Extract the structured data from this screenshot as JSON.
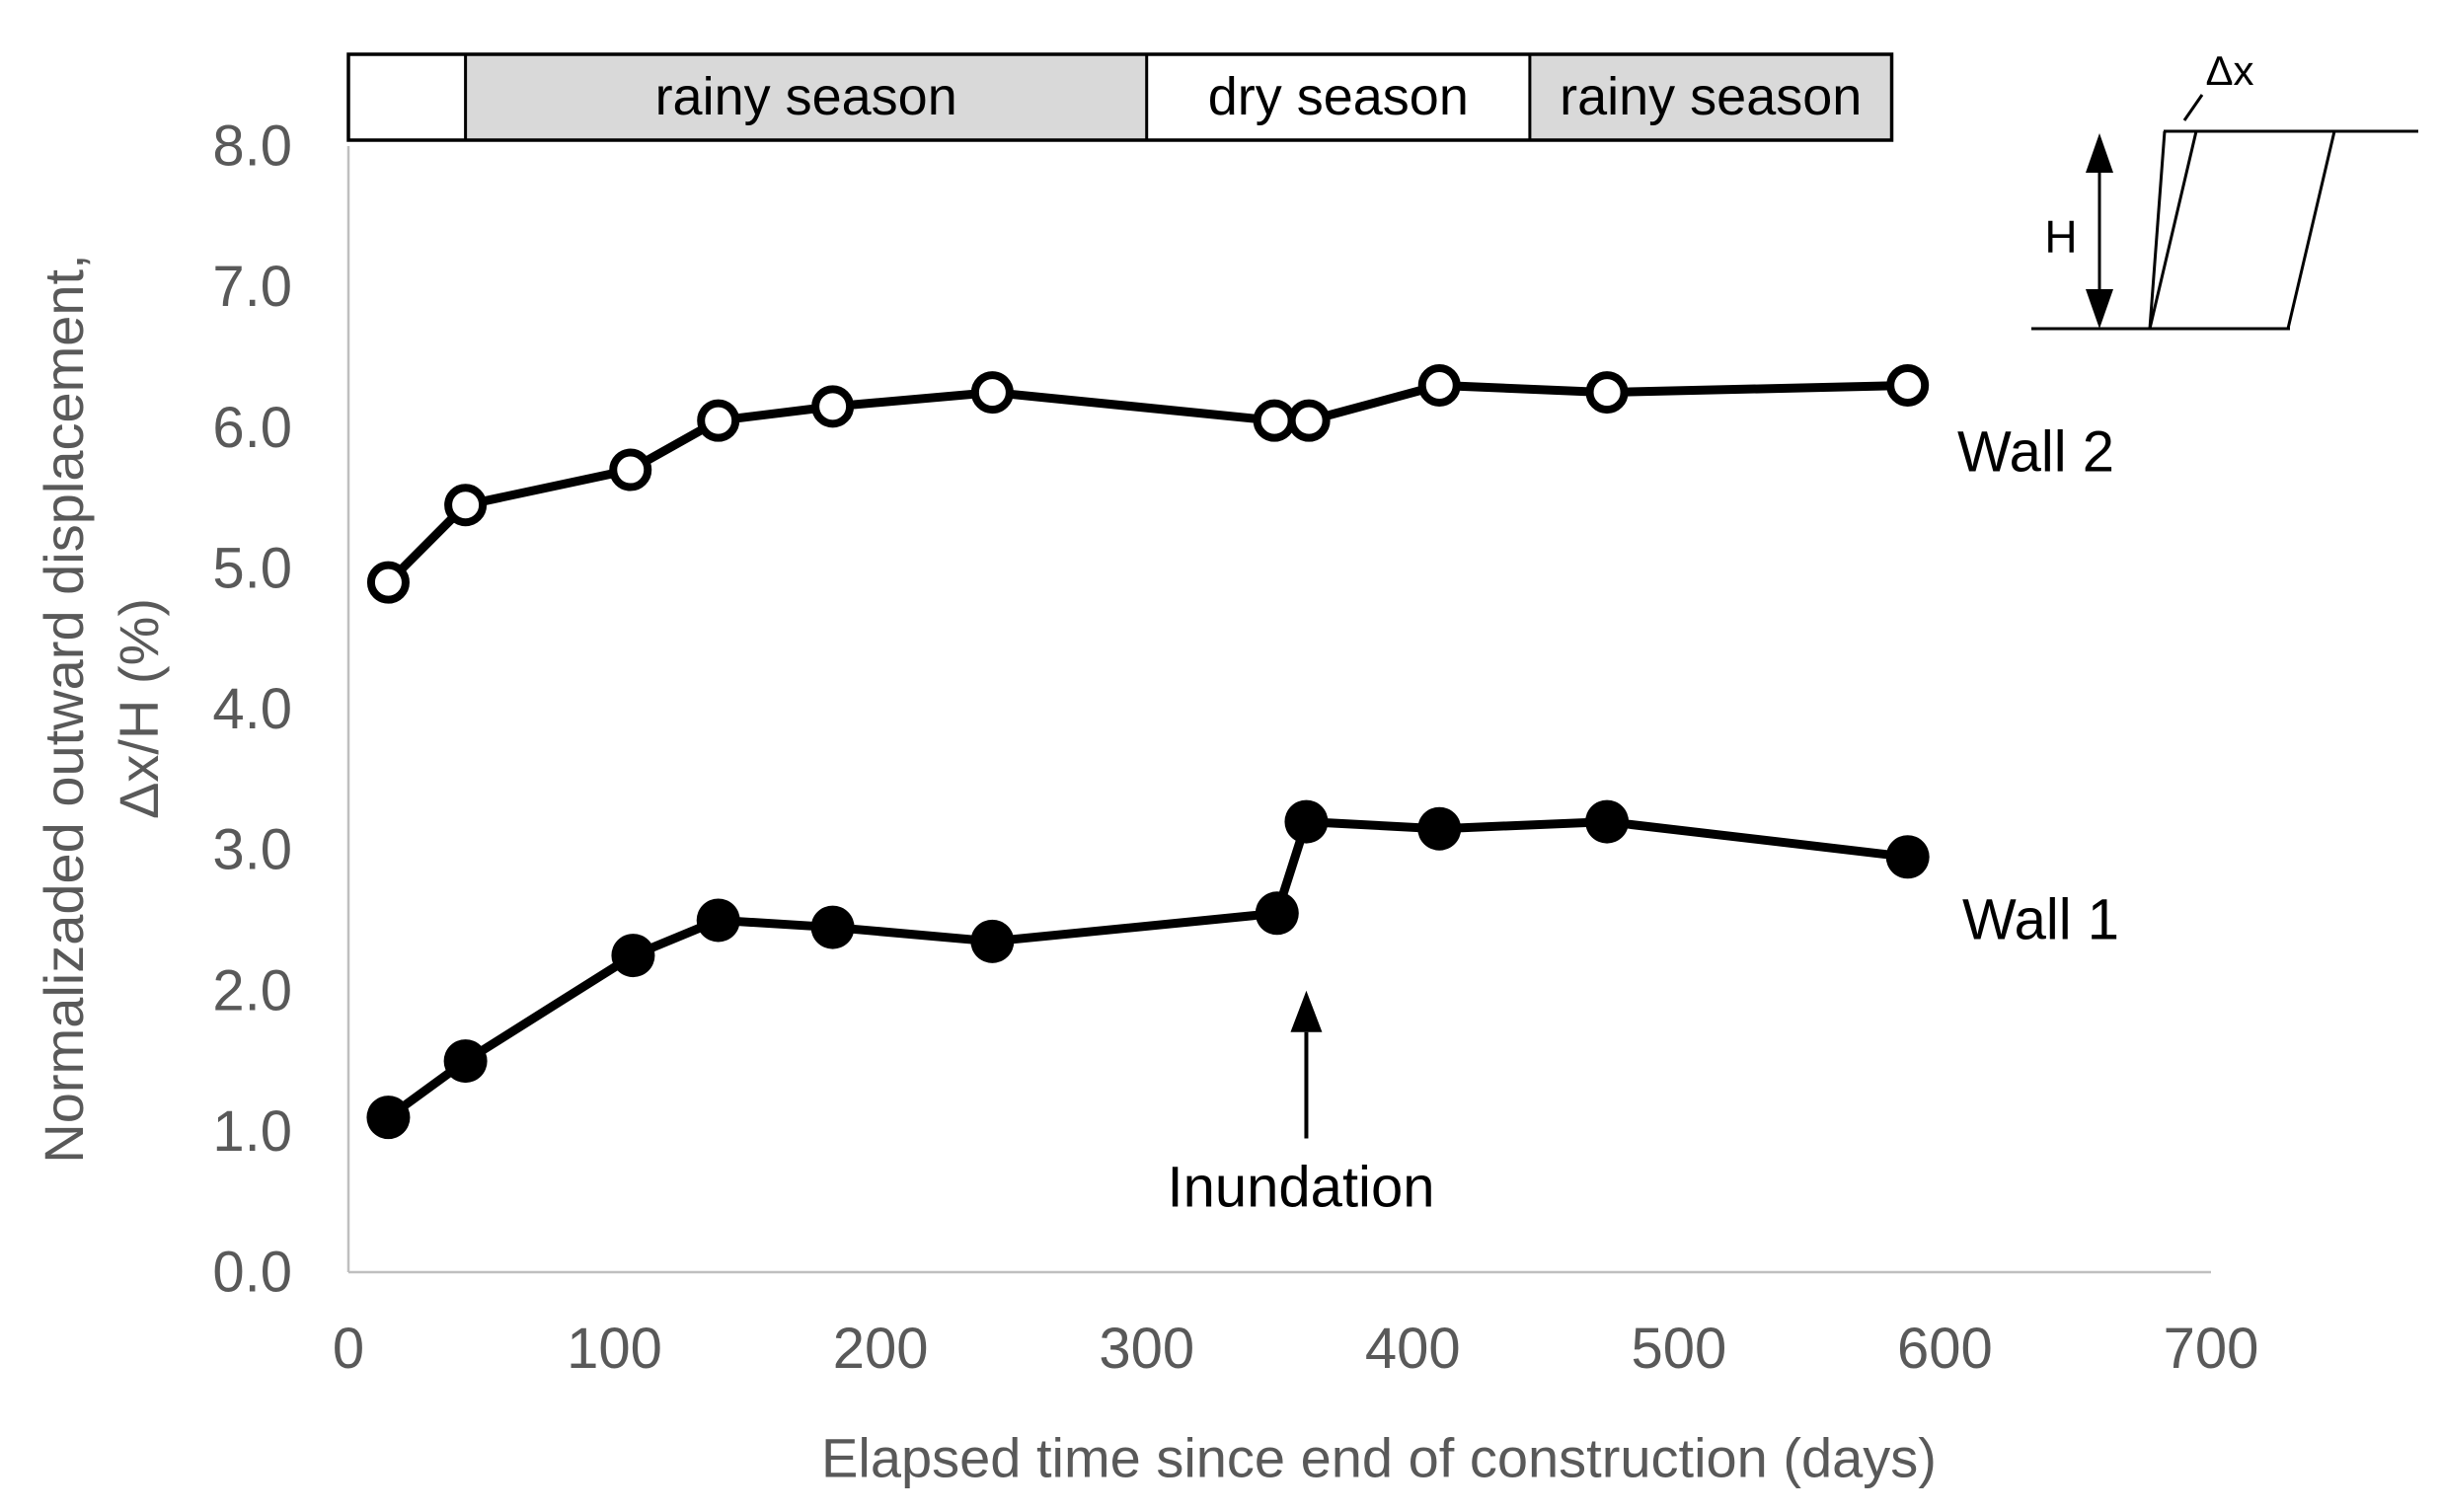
{
  "chart_data": {
    "type": "line",
    "title": "",
    "x_axis": {
      "label": "Elapsed time since end of construction (days)",
      "range": [
        0,
        700
      ],
      "ticks": [
        0,
        100,
        200,
        300,
        400,
        500,
        600,
        700
      ]
    },
    "y_axis": {
      "label_line1": "Normalizaded outward displacement,",
      "label_line2": "Δx/H (%)",
      "range": [
        0,
        8
      ],
      "tick_values": [
        0,
        1,
        2,
        3,
        4,
        5,
        6,
        7,
        8
      ],
      "tick_labels": [
        "0.0",
        "1.0",
        "2.0",
        "3.0",
        "4.0",
        "5.0",
        "6.0",
        "7.0",
        "8.0"
      ]
    },
    "season_bands": {
      "range_days": [
        0,
        580
      ],
      "segments": [
        {
          "label": "",
          "start": 0,
          "end": 44,
          "shaded": false
        },
        {
          "label": "rainy season",
          "start": 44,
          "end": 300,
          "shaded": true
        },
        {
          "label": "dry season",
          "start": 300,
          "end": 444,
          "shaded": false
        },
        {
          "label": "rainy season",
          "start": 444,
          "end": 580,
          "shaded": true
        }
      ]
    },
    "series": [
      {
        "name": "Wall 1",
        "marker": "filled-circle",
        "points": [
          [
            15,
            1.1
          ],
          [
            44,
            1.5
          ],
          [
            107,
            2.25
          ],
          [
            139,
            2.5
          ],
          [
            182,
            2.45
          ],
          [
            242,
            2.35
          ],
          [
            349,
            2.55
          ],
          [
            360,
            3.2
          ],
          [
            410,
            3.15
          ],
          [
            473,
            3.2
          ],
          [
            586,
            2.95
          ]
        ]
      },
      {
        "name": "Wall 2",
        "marker": "open-circle",
        "points": [
          [
            15,
            4.9
          ],
          [
            44,
            5.45
          ],
          [
            106,
            5.7
          ],
          [
            139,
            6.05
          ],
          [
            182,
            6.15
          ],
          [
            242,
            6.25
          ],
          [
            348,
            6.05
          ],
          [
            361,
            6.05
          ],
          [
            410,
            6.3
          ],
          [
            473,
            6.25
          ],
          [
            586,
            6.3
          ]
        ]
      }
    ],
    "annotation": {
      "text": "Inundation",
      "arrow_x_days": 360,
      "arrow_tip_y": 2.0,
      "arrow_tail_y": 0.95
    },
    "inset": {
      "dx_label": "Δx",
      "h_label": "H"
    },
    "colors": {
      "text_gray": "#595959",
      "axis_gray": "#bfbfbf",
      "band_fill": "#d9d9d9",
      "band_border": "#000000",
      "series_black": "#000000",
      "background": "#ffffff"
    }
  }
}
